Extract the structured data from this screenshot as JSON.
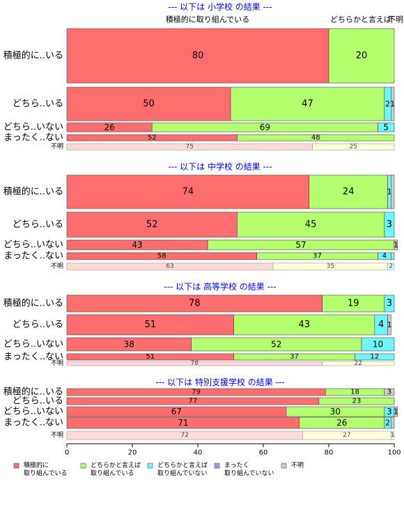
{
  "chart_data": {
    "type": "bar",
    "orientation": "horizontal",
    "stacked": true,
    "xlim": [
      0,
      100
    ],
    "x_ticks": [
      "0",
      "20",
      "40",
      "60",
      "80",
      "100"
    ],
    "grid": false,
    "legend_position": "bottom",
    "top_header": {
      "col1": "積極的に取り組んでいる",
      "col2": "どちらかと言えば",
      "col3": "不明"
    },
    "series": [
      {
        "name": "積極的に\n取り組んでいる",
        "color": "#ff6e6e"
      },
      {
        "name": "どちらかと言えば\n取り組んでいる",
        "color": "#b3ff6e"
      },
      {
        "name": "どちらかと言えば\n取り組んでいない",
        "color": "#6ef6ff"
      },
      {
        "name": "まったく\n取り組んでいない",
        "color": "#b28cff"
      },
      {
        "name": "不明",
        "color": "#cccccc"
      }
    ],
    "unknown_row_colors": [
      "#ffdada",
      "#ffffd9",
      "#d9f9ff",
      "#e6dcff",
      "#eeeeee"
    ],
    "panels": [
      {
        "title": "--- 以下は 小学校 の結果 ---",
        "rows": [
          {
            "label": "積極的に..いる",
            "values": [
              80,
              20,
              0,
              0,
              0
            ],
            "labels": [
              "80",
              "20",
              "",
              "",
              ""
            ]
          },
          {
            "label": "どちら..いる",
            "values": [
              50,
              47,
              2,
              0,
              1
            ],
            "labels": [
              "50",
              "47",
              "2",
              "",
              "1"
            ]
          },
          {
            "label": "どちら..いない",
            "values": [
              26,
              69,
              5,
              0,
              0
            ],
            "labels": [
              "26",
              "69",
              "5",
              "",
              ""
            ]
          },
          {
            "label": "まったく..ない",
            "values": [
              52,
              48,
              0,
              0,
              0
            ],
            "labels": [
              "52",
              "48",
              "",
              "",
              ""
            ]
          },
          {
            "label": "不明",
            "values": [
              75,
              25,
              0,
              0,
              0
            ],
            "labels": [
              "75",
              "25",
              "",
              "",
              ""
            ]
          }
        ]
      },
      {
        "title": "--- 以下は 中学校 の結果 ---",
        "rows": [
          {
            "label": "積極的に..いる",
            "values": [
              74,
              24,
              1,
              0,
              1
            ],
            "labels": [
              "74",
              "24",
              "1",
              "",
              ""
            ]
          },
          {
            "label": "どちら..いる",
            "values": [
              52,
              45,
              3,
              0,
              0
            ],
            "labels": [
              "52",
              "45",
              "3",
              "",
              ""
            ]
          },
          {
            "label": "どちら..いない",
            "values": [
              43,
              57,
              0,
              0,
              1
            ],
            "labels": [
              "43",
              "57",
              "",
              "",
              "1"
            ]
          },
          {
            "label": "まったく..ない",
            "values": [
              58,
              37,
              4,
              0,
              1
            ],
            "labels": [
              "58",
              "37",
              "4",
              "",
              ""
            ]
          },
          {
            "label": "不明",
            "values": [
              63,
              35,
              2,
              0,
              0
            ],
            "labels": [
              "63",
              "35",
              "2",
              "",
              ""
            ]
          }
        ]
      },
      {
        "title": "--- 以下は 高等学校 の結果 ---",
        "rows": [
          {
            "label": "積極的に..いる",
            "values": [
              78,
              19,
              3,
              0,
              0
            ],
            "labels": [
              "78",
              "19",
              "3",
              "",
              ""
            ]
          },
          {
            "label": "どちら..いる",
            "values": [
              51,
              43,
              4,
              0,
              1
            ],
            "labels": [
              "51",
              "43",
              "4",
              "",
              "1"
            ]
          },
          {
            "label": "どちら..いない",
            "values": [
              38,
              52,
              10,
              0,
              0
            ],
            "labels": [
              "38",
              "52",
              "10",
              "",
              ""
            ]
          },
          {
            "label": "まったく..ない",
            "values": [
              51,
              37,
              12,
              0,
              0
            ],
            "labels": [
              "51",
              "37",
              "12",
              "",
              ""
            ]
          },
          {
            "label": "不明",
            "values": [
              78,
              22,
              0,
              0,
              0
            ],
            "labels": [
              "78",
              "22",
              "",
              "",
              ""
            ]
          }
        ]
      },
      {
        "title": "--- 以下は 特別支援学校 の結果 ---",
        "rows": [
          {
            "label": "積極的に..いる",
            "values": [
              79,
              18,
              0,
              0,
              3
            ],
            "labels": [
              "79",
              "18",
              "",
              "",
              "3"
            ]
          },
          {
            "label": "どちら..いる",
            "values": [
              77,
              23,
              0,
              0,
              0
            ],
            "labels": [
              "77",
              "23",
              "",
              "",
              ""
            ]
          },
          {
            "label": "どちら..いない",
            "values": [
              67,
              30,
              3,
              0,
              1
            ],
            "labels": [
              "67",
              "30",
              "3",
              "",
              "1"
            ]
          },
          {
            "label": "まったく..ない",
            "values": [
              71,
              26,
              2,
              0,
              1
            ],
            "labels": [
              "71",
              "26",
              "2",
              "",
              ""
            ]
          },
          {
            "label": "不明",
            "values": [
              72,
              27,
              0,
              0,
              1
            ],
            "labels": [
              "72",
              "27",
              "",
              "",
              "1"
            ]
          }
        ]
      }
    ]
  }
}
